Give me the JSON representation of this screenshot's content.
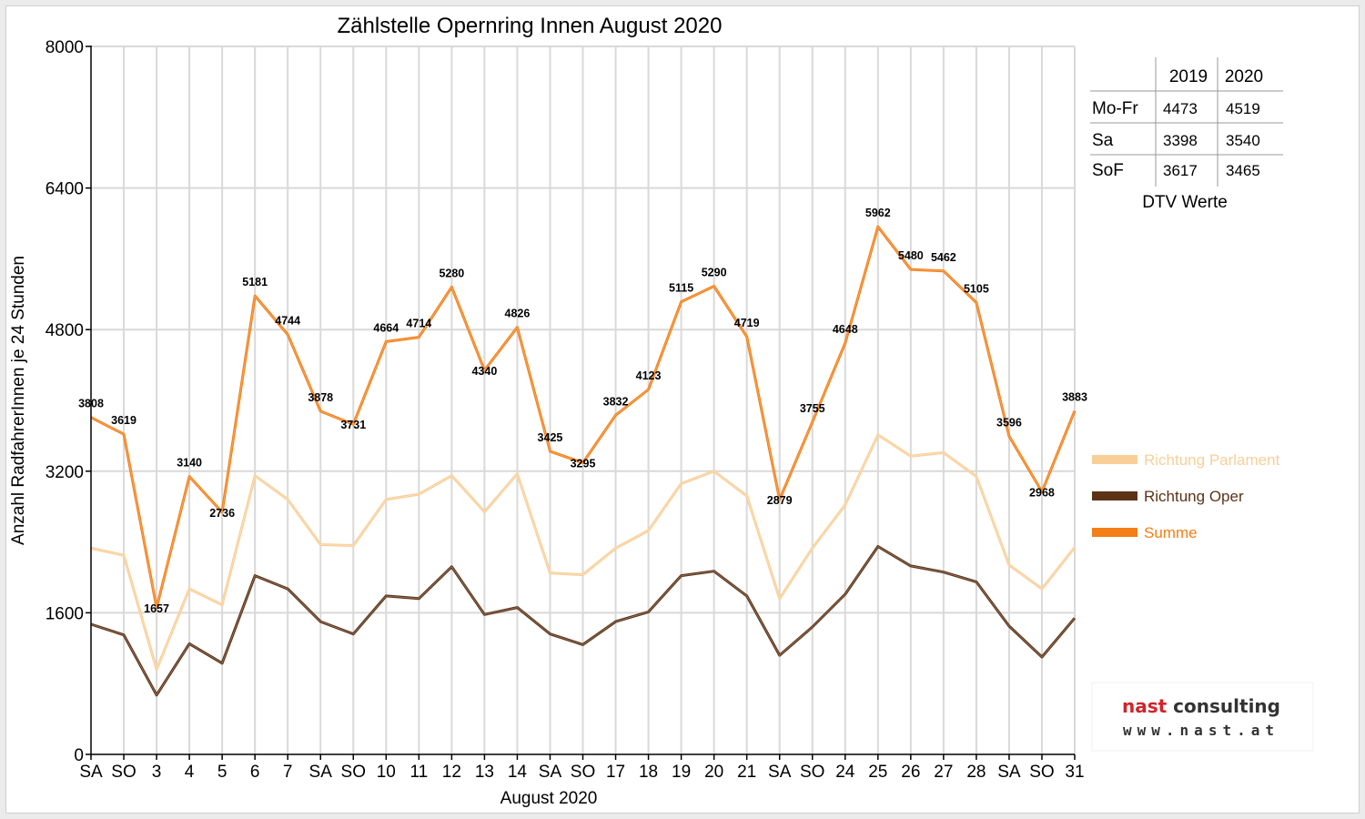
{
  "chart_data": {
    "type": "line",
    "title": "Zählstelle Opernring Innen August 2020",
    "xlabel": "August 2020",
    "ylabel": "Anzahl RadfahrerInnen je 24 Stunden",
    "ylim": [
      0,
      8000
    ],
    "yticks": [
      "0",
      "1600",
      "3200",
      "4800",
      "6400",
      "8000"
    ],
    "ytick_values": [
      0,
      1600,
      3200,
      4800,
      6400,
      8000
    ],
    "categories": [
      "SA",
      "SO",
      "3",
      "4",
      "5",
      "6",
      "7",
      "SA",
      "SO",
      "10",
      "11",
      "12",
      "13",
      "14",
      "SA",
      "SO",
      "17",
      "18",
      "19",
      "20",
      "21",
      "SA",
      "SO",
      "24",
      "25",
      "26",
      "27",
      "28",
      "SA",
      "SO",
      "31"
    ],
    "category_is_sunday": [
      false,
      true,
      false,
      false,
      false,
      false,
      false,
      false,
      true,
      false,
      false,
      false,
      false,
      false,
      false,
      true,
      false,
      false,
      false,
      false,
      false,
      false,
      true,
      false,
      false,
      false,
      false,
      false,
      false,
      true,
      false
    ],
    "grid": true,
    "legend_position": "right",
    "series": [
      {
        "name": "Richtung Parlament",
        "color": "#f9cf98",
        "values": [
          2330,
          2250,
          960,
          1870,
          1690,
          3150,
          2880,
          2370,
          2360,
          2880,
          2940,
          3150,
          2740,
          3170,
          2050,
          2030,
          2330,
          2530,
          3060,
          3200,
          2920,
          1760,
          2330,
          2820,
          3610,
          3370,
          3410,
          3140,
          2140,
          1870,
          2340
        ]
      },
      {
        "name": "Richtung Oper",
        "color": "#5c3317",
        "values": [
          1470,
          1350,
          670,
          1250,
          1030,
          2020,
          1870,
          1500,
          1360,
          1790,
          1760,
          2120,
          1580,
          1660,
          1360,
          1240,
          1500,
          1610,
          2020,
          2070,
          1790,
          1120,
          1440,
          1810,
          2350,
          2130,
          2060,
          1950,
          1450,
          1100,
          1540
        ]
      },
      {
        "name": "Summe",
        "color": "#f47f17",
        "values": [
          3808,
          3619,
          1657,
          3140,
          2736,
          5181,
          4744,
          3878,
          3731,
          4664,
          4714,
          5280,
          4340,
          4826,
          3425,
          3295,
          3832,
          4123,
          5115,
          5290,
          4719,
          2879,
          3755,
          4648,
          5962,
          5480,
          5462,
          5105,
          3596,
          2968,
          3883
        ]
      }
    ],
    "data_labels": [
      "3808",
      "3619",
      "1657",
      "3140",
      "2736",
      "5181",
      "4744",
      "3878",
      "3731",
      "4664",
      "4714",
      "5280",
      "4340",
      "4826",
      "3425",
      "3295",
      "3832",
      "4123",
      "5115",
      "5290",
      "4719",
      "2879",
      "3755",
      "4648",
      "5962",
      "5480",
      "5462",
      "5105",
      "3596",
      "2968",
      "3883"
    ],
    "colors": {
      "sunday_label": "#e0000f",
      "grid": "#d9d9d9",
      "axis": "#000000"
    }
  },
  "dtv_table": {
    "caption": "DTV Werte",
    "headers": [
      "2019",
      "2020"
    ],
    "rows": [
      {
        "label": "Mo-Fr",
        "y2019": "4473",
        "y2020": "4519"
      },
      {
        "label": "Sa",
        "y2019": "3398",
        "y2020": "3540"
      },
      {
        "label": "SoF",
        "y2019": "3617",
        "y2020": "3465"
      }
    ]
  },
  "logo": {
    "part1": "nast",
    "part2": " consulting",
    "url_text": "www.nast.at",
    "colors": {
      "nast": "#d2232a",
      "consulting": "#333333"
    }
  }
}
